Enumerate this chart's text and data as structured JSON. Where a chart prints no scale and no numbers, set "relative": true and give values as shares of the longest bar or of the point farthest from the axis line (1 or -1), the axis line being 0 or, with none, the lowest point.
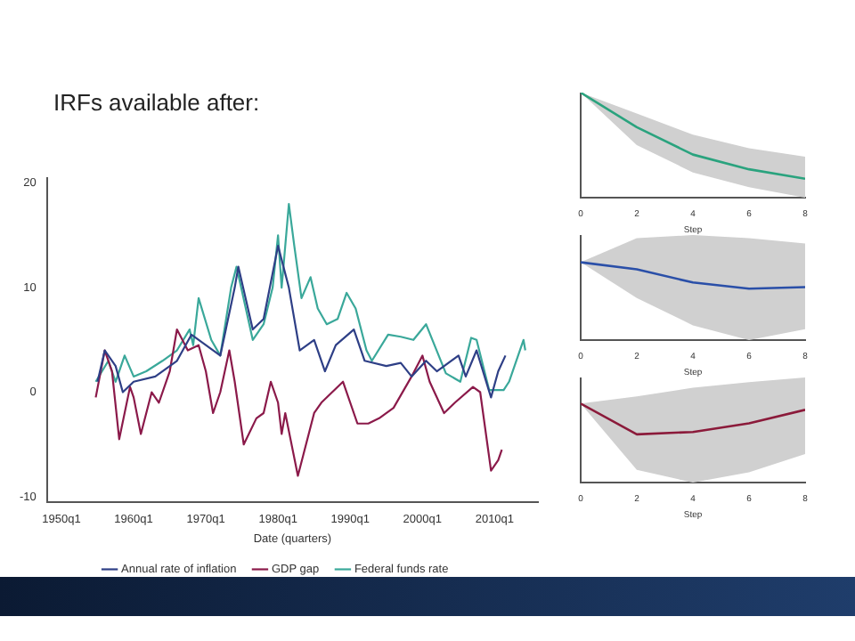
{
  "chart_data": [
    {
      "type": "line",
      "title": "IRFs available after:",
      "xlabel": "Date (quarters)",
      "xlim": [
        "1948-01",
        "2016-01"
      ],
      "ylim": [
        -10.5,
        20.5
      ],
      "xticks": [
        {
          "value": "1950-01",
          "label": "1950q1"
        },
        {
          "value": "1960-01",
          "label": "1960q1"
        },
        {
          "value": "1970-01",
          "label": "1970q1"
        },
        {
          "value": "1980-01",
          "label": "1980q1"
        },
        {
          "value": "1990-01",
          "label": "1990q1"
        },
        {
          "value": "2000-01",
          "label": "2000q1"
        },
        {
          "value": "2010-01",
          "label": "2010q1"
        }
      ],
      "yticks": [
        -10,
        0,
        10,
        20
      ],
      "legend": "bottom",
      "marker": "none",
      "line_style": "solid",
      "series": [
        {
          "name": "Annual rate of inflation",
          "color": "#2e3f86",
          "x": [
            "1955-01",
            "1956-01",
            "1957-07",
            "1958-07",
            "1960-01",
            "1963-01",
            "1966-01",
            "1968-01",
            "1970-01",
            "1972-01",
            "1974-01",
            "1974-07",
            "1976-07",
            "1978-01",
            "1980-01",
            "1981-07",
            "1983-01",
            "1985-01",
            "1986-07",
            "1988-01",
            "1990-07",
            "1992-01",
            "1995-01",
            "1997-01",
            "1998-07",
            "2000-07",
            "2002-01",
            "2005-01",
            "2006-01",
            "2007-07",
            "2009-07",
            "2010-07",
            "2011-07"
          ],
          "values": [
            1,
            4,
            2.5,
            0,
            1,
            1.5,
            3,
            5.5,
            4.5,
            3.5,
            10,
            12,
            6,
            7,
            14,
            10,
            4,
            5,
            2,
            4.5,
            6,
            3,
            2.5,
            2.8,
            1.5,
            3,
            2,
            3.5,
            1.5,
            4,
            -0.5,
            2,
            3.5
          ]
        },
        {
          "name": "GDP gap",
          "color": "#8b1a4a",
          "x": [
            "1954-10",
            "1956-01",
            "1957-01",
            "1958-01",
            "1959-07",
            "1960-01",
            "1961-01",
            "1962-07",
            "1963-07",
            "1965-01",
            "1966-01",
            "1967-07",
            "1969-01",
            "1970-01",
            "1971-01",
            "1972-01",
            "1973-04",
            "1974-01",
            "1975-04",
            "1977-01",
            "1978-01",
            "1979-01",
            "1980-01",
            "1980-07",
            "1981-01",
            "1982-10",
            "1983-07",
            "1985-01",
            "1986-01",
            "1989-01",
            "1991-01",
            "1992-07",
            "1994-01",
            "1996-01",
            "1998-07",
            "2000-01",
            "2001-01",
            "2003-01",
            "2004-07",
            "2007-01",
            "2008-01",
            "2009-07",
            "2010-07",
            "2011-01"
          ],
          "values": [
            -0.5,
            4,
            2,
            -4.5,
            0.5,
            -0.5,
            -4,
            0,
            -1,
            2,
            6,
            4,
            4.5,
            2,
            -2,
            0,
            4,
            1,
            -5,
            -2.5,
            -2,
            1,
            -1,
            -4,
            -2,
            -8,
            -6,
            -2,
            -1,
            1,
            -3,
            -3,
            -2.5,
            -1.5,
            1.5,
            3.5,
            1,
            -2,
            -1,
            0.5,
            0,
            -7.5,
            -6.5,
            -5.5
          ]
        },
        {
          "name": "Federal funds rate",
          "color": "#3aa89a",
          "x": [
            "1954-10",
            "1956-07",
            "1957-07",
            "1958-10",
            "1960-01",
            "1961-10",
            "1964-01",
            "1966-01",
            "1967-10",
            "1968-04",
            "1969-01",
            "1970-10",
            "1972-01",
            "1973-07",
            "1974-04",
            "1976-07",
            "1978-01",
            "1979-04",
            "1980-01",
            "1980-07",
            "1981-07",
            "1982-04",
            "1983-04",
            "1984-07",
            "1985-07",
            "1986-10",
            "1988-04",
            "1989-07",
            "1990-10",
            "1992-04",
            "1993-01",
            "1995-04",
            "1997-01",
            "1998-10",
            "2000-07",
            "2003-04",
            "2005-04",
            "2006-10",
            "2007-07",
            "2009-04",
            "2011-04",
            "2012-01",
            "2014-01",
            "2014-04"
          ],
          "values": [
            1,
            3,
            1,
            3.5,
            1.5,
            2,
            3,
            4,
            6,
            4.5,
            9,
            5,
            3.5,
            10,
            12,
            5,
            6.5,
            10,
            15,
            10,
            18,
            14,
            9,
            11,
            8,
            6.5,
            7,
            9.5,
            8,
            4,
            3,
            5.5,
            5.3,
            5,
            6.5,
            1.8,
            1,
            5.2,
            5,
            0.2,
            0.2,
            1,
            5,
            4
          ]
        }
      ]
    },
    {
      "type": "line",
      "relative": true,
      "xlabel": "Step",
      "xlim": [
        0,
        8
      ],
      "xticks": [
        0,
        2,
        4,
        6,
        8
      ],
      "tick_labels": "x",
      "marker": "none",
      "series": [
        {
          "color": "#2aa37e",
          "x": [
            0,
            2,
            4,
            6,
            8
          ],
          "values": [
            1,
            0.67,
            0.41,
            0.27,
            0.18
          ],
          "lower": [
            1,
            0.5,
            0.24,
            0.1,
            0
          ],
          "upper": [
            1,
            0.8,
            0.6,
            0.47,
            0.39
          ]
        }
      ]
    },
    {
      "type": "line",
      "relative": true,
      "xlabel": "Step",
      "xlim": [
        0,
        8
      ],
      "xticks": [
        0,
        2,
        4,
        6,
        8
      ],
      "tick_labels": "x",
      "marker": "none",
      "series": [
        {
          "color": "#2a4fa8",
          "x": [
            0,
            2,
            4,
            6,
            8
          ],
          "values": [
            1,
            0.91,
            0.74,
            0.66,
            0.68
          ],
          "lower": [
            1,
            0.54,
            0.19,
            0,
            0.14
          ],
          "upper": [
            1,
            1.31,
            1.35,
            1.31,
            1.24
          ]
        }
      ]
    },
    {
      "type": "line",
      "relative": true,
      "xlabel": "Step",
      "xlim": [
        0,
        8
      ],
      "xticks": [
        0,
        2,
        4,
        6,
        8
      ],
      "tick_labels": "x",
      "marker": "none",
      "series": [
        {
          "color": "#8b1a3a",
          "x": [
            0,
            2,
            4,
            6,
            8
          ],
          "values": [
            1,
            0.61,
            0.64,
            0.75,
            0.92
          ],
          "lower": [
            1,
            0.16,
            0,
            0.13,
            0.36
          ],
          "upper": [
            1,
            1.09,
            1.2,
            1.27,
            1.33
          ]
        }
      ]
    }
  ]
}
